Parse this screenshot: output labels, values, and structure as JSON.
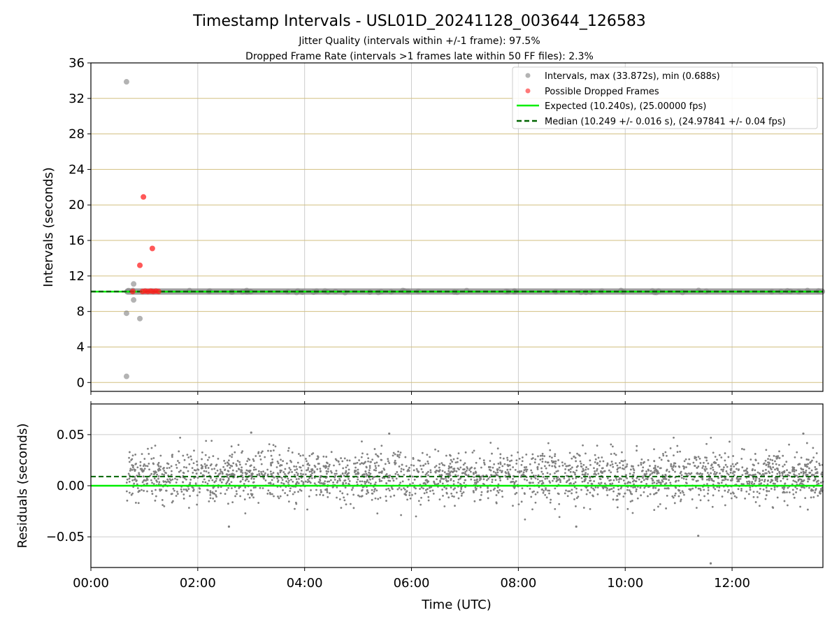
{
  "title": "Timestamp Intervals - USL01D_20241128_003644_126583",
  "subtitle_1": "Jitter Quality (intervals within +/-1 frame): 97.5%",
  "subtitle_2": "Dropped Frame Rate (intervals >1 frames late within 50 FF files): 2.3%",
  "colors": {
    "intervals": "#808080",
    "dropped": "#ff2020",
    "expected": "#00ee00",
    "median": "#006400",
    "hgrid_top": "#d2bf80",
    "vgrid": "#cccccc"
  },
  "chart_data": [
    {
      "type": "scatter",
      "ylabel": "Intervals (seconds)",
      "ylim": [
        -1,
        36
      ],
      "xlim_hours": [
        0,
        13.7
      ],
      "yticks": [
        0,
        4,
        8,
        12,
        16,
        20,
        24,
        28,
        32,
        36
      ],
      "grid": true,
      "legend_position": "top-right",
      "legend": [
        "Intervals, max (33.872s), min (0.688s)",
        "Possible Dropped Frames",
        "Expected (10.240s), (25.00000 fps)",
        "Median (10.249 +/- 0.016 s), (24.97841 +/- 0.04 fps)"
      ],
      "expected_value": 10.24,
      "median_value": 10.249,
      "series": [
        {
          "name": "Intervals, max (33.872s), min (0.688s)",
          "points": [
            {
              "x": "00:40",
              "y": 33.872
            },
            {
              "x": "00:40",
              "y": 7.8
            },
            {
              "x": "00:40",
              "y": 0.688
            },
            {
              "x": "00:48",
              "y": 11.1
            },
            {
              "x": "00:48",
              "y": 9.3
            },
            {
              "x": "00:55",
              "y": 7.2
            }
          ],
          "dense_band": {
            "x_from": "00:40",
            "x_to": "13:42",
            "y": 10.25
          }
        },
        {
          "name": "Possible Dropped Frames",
          "points": [
            {
              "x": "00:55",
              "y": 13.2
            },
            {
              "x": "00:59",
              "y": 20.9
            },
            {
              "x": "01:09",
              "y": 15.1
            },
            {
              "x": "00:47",
              "y": 10.25
            },
            {
              "x": "00:58",
              "y": 10.25
            },
            {
              "x": "01:01",
              "y": 10.3
            },
            {
              "x": "01:04",
              "y": 10.25
            },
            {
              "x": "01:07",
              "y": 10.3
            },
            {
              "x": "01:10",
              "y": 10.25
            },
            {
              "x": "01:13",
              "y": 10.3
            },
            {
              "x": "01:16",
              "y": 10.25
            }
          ]
        }
      ]
    },
    {
      "type": "scatter",
      "xlabel": "Time (UTC)",
      "ylabel": "Residuals (seconds)",
      "ylim": [
        -0.08,
        0.08
      ],
      "yticks": [
        -0.05,
        0.0,
        0.05
      ],
      "ytick_labels": [
        "−0.05",
        "0.00",
        "0.05"
      ],
      "xlim_hours": [
        0,
        13.7
      ],
      "xticks": [
        "00:00",
        "02:00",
        "04:00",
        "06:00",
        "08:00",
        "10:00",
        "12:00"
      ],
      "grid": true,
      "expected_value": 0.0,
      "median_value": 0.009,
      "residual_cloud": {
        "x_from": "00:40",
        "x_to": "13:42",
        "center": 0.009,
        "spread": 0.016
      },
      "outliers": [
        {
          "x": "11:22",
          "y": -0.049
        },
        {
          "x": "11:36",
          "y": -0.076
        },
        {
          "x": "02:35",
          "y": -0.04
        },
        {
          "x": "09:05",
          "y": -0.04
        },
        {
          "x": "03:00",
          "y": 0.052
        },
        {
          "x": "05:35",
          "y": 0.051
        },
        {
          "x": "13:20",
          "y": 0.051
        }
      ]
    }
  ]
}
